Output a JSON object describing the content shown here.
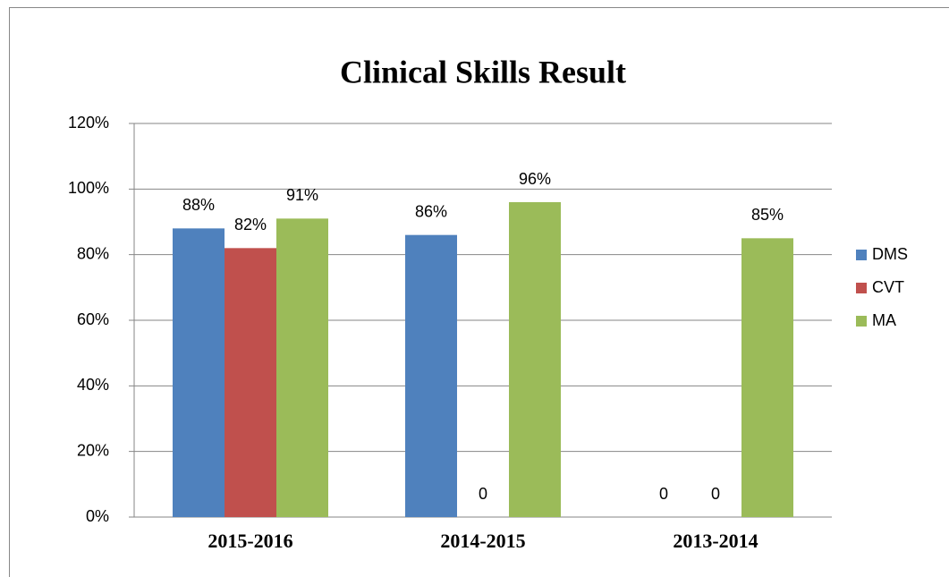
{
  "chart_data": {
    "type": "bar",
    "title": "Clinical Skills Result",
    "categories": [
      "2015-2016",
      "2014-2015",
      "2013-2014"
    ],
    "series": [
      {
        "name": "DMS",
        "color": "#4f81bd",
        "values": [
          88,
          86,
          0
        ],
        "value_labels": [
          "88%",
          "86%",
          "0"
        ]
      },
      {
        "name": "CVT",
        "color": "#c0504d",
        "values": [
          82,
          0,
          0
        ],
        "value_labels": [
          "82%",
          "0",
          "0"
        ]
      },
      {
        "name": "MA",
        "color": "#9bbb59",
        "values": [
          91,
          96,
          85
        ],
        "value_labels": [
          "91%",
          "96%",
          "85%"
        ]
      }
    ],
    "ylim": [
      0,
      120
    ],
    "yticks": [
      {
        "value": 0,
        "label": "0%"
      },
      {
        "value": 20,
        "label": "20%"
      },
      {
        "value": 40,
        "label": "40%"
      },
      {
        "value": 60,
        "label": "60%"
      },
      {
        "value": 80,
        "label": "80%"
      },
      {
        "value": 100,
        "label": "100%"
      },
      {
        "value": 120,
        "label": "120%"
      }
    ],
    "grid": true,
    "legend": "right"
  }
}
